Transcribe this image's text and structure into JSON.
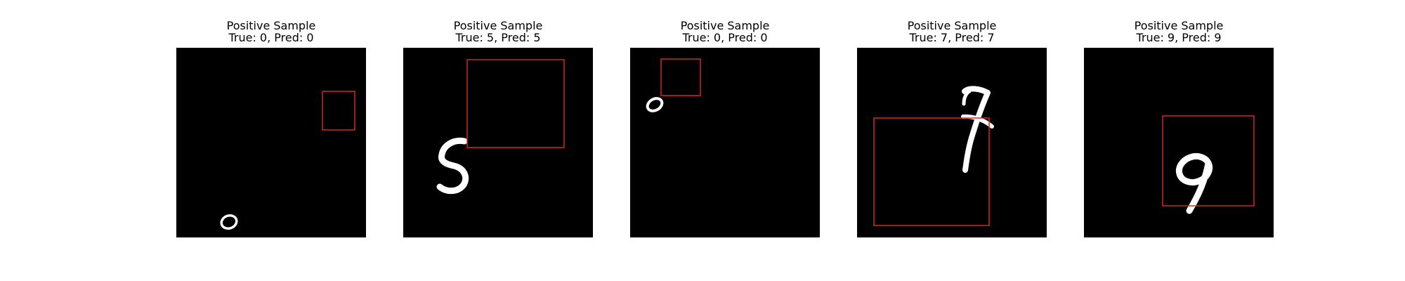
{
  "colors": {
    "background": "#ffffff",
    "image_background": "#000000",
    "digit": "#ffffff",
    "box": "#d62728"
  },
  "panels": [
    {
      "heading": "Positive Sample",
      "label": "True: 0, Pred: 0",
      "true_digit": "0",
      "pred_digit": "0"
    },
    {
      "heading": "Positive Sample",
      "label": "True: 5, Pred: 5",
      "true_digit": "5",
      "pred_digit": "5"
    },
    {
      "heading": "Positive Sample",
      "label": "True: 0, Pred: 0",
      "true_digit": "0",
      "pred_digit": "0"
    },
    {
      "heading": "Positive Sample",
      "label": "True: 7, Pred: 7",
      "true_digit": "7",
      "pred_digit": "7"
    },
    {
      "heading": "Positive Sample",
      "label": "True: 9, Pred: 9",
      "true_digit": "9",
      "pred_digit": "9"
    }
  ]
}
